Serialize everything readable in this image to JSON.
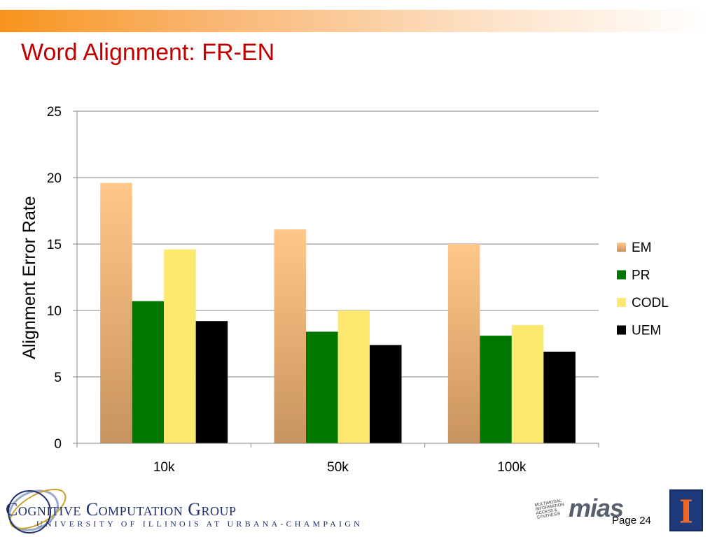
{
  "slide": {
    "title": "Word Alignment: FR-EN",
    "page": "Page 24"
  },
  "footer": {
    "group_name": "Cognitive Computation Group",
    "university": "UNIVERSITY OF ILLINOIS AT URBANA-CHAMPAIGN",
    "mias_text": "mias",
    "mias_small": "Multimodal Information Access & Synthesis"
  },
  "colors": {
    "EM_top": "#ffc888",
    "EM_bottom": "#c9935f",
    "PR": "#007800",
    "CODL": "#fde96f",
    "UEM": "#000000",
    "title": "#c00000",
    "gridline": "#868686"
  },
  "chart_data": {
    "type": "bar",
    "title": "",
    "xlabel": "",
    "ylabel": "Alignment Error Rate",
    "ylim": [
      0,
      25
    ],
    "yticks": [
      0,
      5,
      10,
      15,
      20,
      25
    ],
    "grid": true,
    "legend_position": "right",
    "categories": [
      "10k",
      "50k",
      "100k"
    ],
    "series": [
      {
        "name": "EM",
        "values": [
          19.6,
          16.1,
          15.0
        ]
      },
      {
        "name": "PR",
        "values": [
          10.7,
          8.4,
          8.1
        ]
      },
      {
        "name": "CODL",
        "values": [
          14.6,
          10.0,
          8.9
        ]
      },
      {
        "name": "UEM",
        "values": [
          9.2,
          7.4,
          6.9
        ]
      }
    ]
  }
}
